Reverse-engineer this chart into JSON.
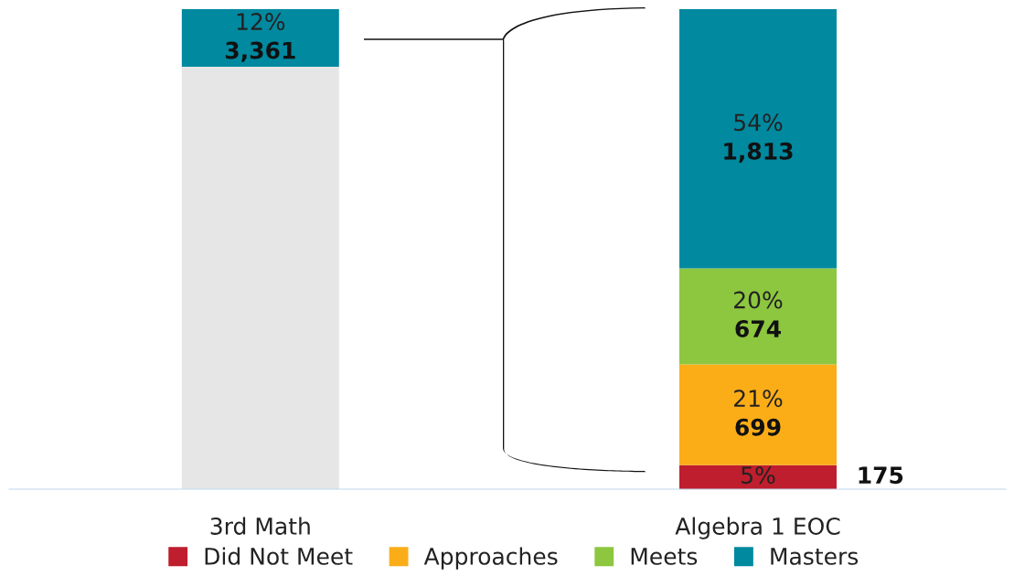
{
  "chart_data": {
    "type": "bar",
    "stacked": true,
    "categories": [
      "3rd Math",
      "Algebra 1 EOC"
    ],
    "ylim": [
      0,
      100
    ],
    "tick_labels": "x",
    "legend": "bottom",
    "marker": "square",
    "grid": false,
    "series": [
      {
        "name": "Did Not Meet",
        "color": "#be1e2d",
        "values": [
          null,
          5
        ],
        "value_labels": [
          null,
          "5%\n175"
        ]
      },
      {
        "name": "Approaches",
        "color": "#fbad18",
        "values": [
          null,
          21
        ],
        "value_labels": [
          null,
          "21%\n699"
        ]
      },
      {
        "name": "Meets",
        "color": "#8dc63f",
        "values": [
          null,
          20
        ],
        "value_labels": [
          null,
          "20%\n674"
        ]
      },
      {
        "color": "#e6e6e6",
        "values": [
          88,
          null
        ],
        "value_labels": [
          null,
          null
        ]
      },
      {
        "name": "Masters",
        "color": "#00899f",
        "values": [
          12,
          54
        ],
        "value_labels": [
          "12%\n3,361",
          "54%\n1,813"
        ]
      }
    ]
  }
}
